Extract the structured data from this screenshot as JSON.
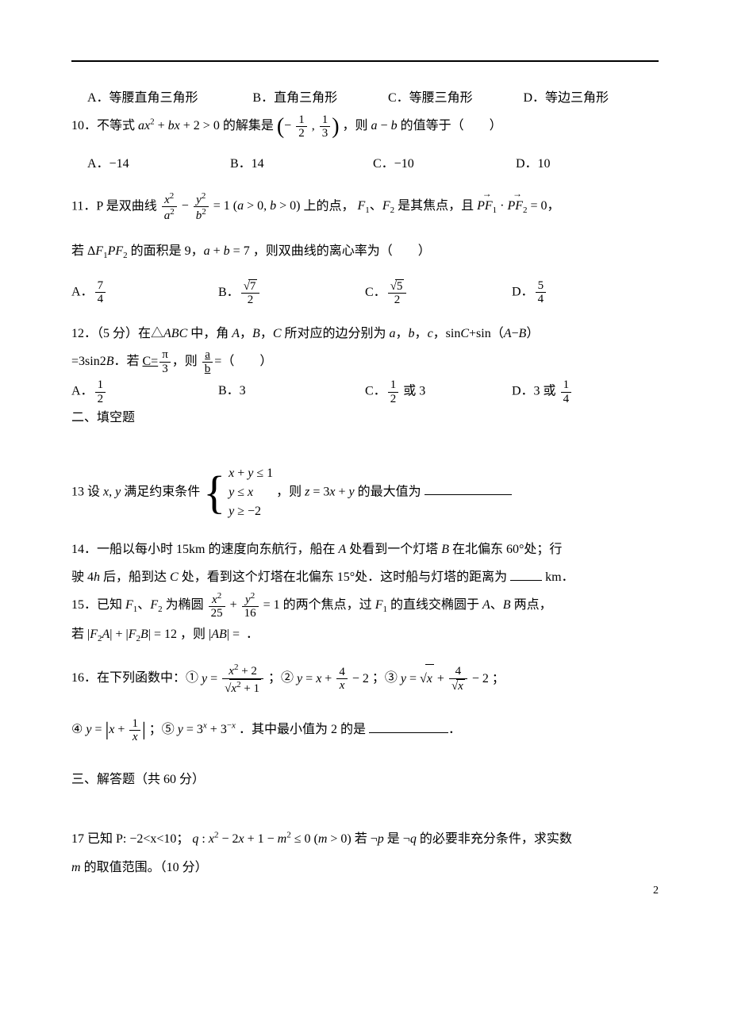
{
  "q9": {
    "choices": {
      "a": "A．等腰直角三角形",
      "b": "B．直角三角形",
      "c": "C．等腰三角形",
      "d": "D．等边三角形"
    }
  },
  "q10": {
    "stem_lead": "10．不等式 ",
    "expr_html": "<span class='ital'>ax</span><sup>2</sup> + <span class='ital'>bx</span> + 2 &gt; 0",
    "mid": " 的解集是 ",
    "interval_html": "<span class='bigparen'>(</span>− <span class='frac'><span class='num'>1</span><span class='den'>2</span></span> , <span class='frac'><span class='num'>1</span><span class='den'>3</span></span><span class='bigparen'>)</span>",
    "tail": "，则 ",
    "ab": "<span class='ital'>a</span> − <span class='ital'>b</span>",
    "tail2": " 的值等于（　　）",
    "choices": {
      "a": "A．−14",
      "b": "B．14",
      "c": "C．−10",
      "d": "D．10"
    }
  },
  "q11": {
    "lead": "11．P 是双曲线 ",
    "eq_html": "<span class='frac'><span class='num'><span class='ital'>x</span><sup>2</sup></span><span class='den'><span class='ital'>a</span><sup>2</sup></span></span> − <span class='frac'><span class='num'><span class='ital'>y</span><sup>2</sup></span><span class='den'><span class='ital'>b</span><sup>2</sup></span></span> = 1 (<span class='ital'>a</span> &gt; 0, <span class='ital'>b</span> &gt; 0)",
    "mid": " 上的点，",
    "foci": "<span class='ital'>F</span><sub>1</sub>、<span class='ital'>F</span><sub>2</sub> 是其焦点，且 ",
    "dot": "<span class='vec'><span class='ital'>PF</span><sub>1</sub></span> · <span class='vec'><span class='ital'>PF</span><sub>2</sub></span> = 0，",
    "line2_lead": "若 Δ<span class='ital'>F</span><sub>1</sub><span class='ital'>PF</span><sub>2</sub> 的面积是 9，<span class='ital'>a</span> + <span class='ital'>b</span> = 7 ，则双曲线的离心率为（　　）",
    "choices": {
      "a": "A．<span class='frac'><span class='num'>7</span><span class='den'>4</span></span>",
      "b": "B．<span class='frac'><span class='num'>√<span class='sqrt'>7</span></span><span class='den'>2</span></span>",
      "c": "C．<span class='frac'><span class='num'>√<span class='sqrt'>5</span></span><span class='den'>2</span></span>",
      "d": "D．<span class='frac'><span class='num'>5</span><span class='den'>4</span></span>"
    }
  },
  "q12": {
    "lead": "12．（5 分）在△<span class='ital'>ABC</span> 中，角 <span class='ital'>A</span>，<span class='ital'>B</span>，<span class='ital'>C</span> 所对应的边分别为 <span class='ital'>a</span>，<span class='ital'>b</span>，<span class='ital'>c</span>，sin<span class='ital'>C</span>+sin（<span class='ital'>A</span>−<span class='ital'>B</span>）",
    "line2": "=3sin2<span class='ital'>B</span>．若 <span style='text-decoration:underline'>C=<span class='frac'><span class='num'>π</span><span class='den'>3</span></span></span>，则 <span class='frac' style='text-decoration:underline'><span class='num'>a</span><span class='den'>b</span></span>=（　　）",
    "choices": {
      "a": "A．<span class='frac'><span class='num'>1</span><span class='den'>2</span></span>",
      "b": "B．3",
      "c": "C．<span class='frac'><span class='num'>1</span><span class='den'>2</span></span> 或 3",
      "d": "D．3 或 <span class='frac'><span class='num'>1</span><span class='den'>4</span></span>"
    }
  },
  "section2": "二、填空题",
  "q13": {
    "lead": "13 设 <span class='ital'>x</span>, <span class='ital'>y</span> 满足约束条件 ",
    "sys_rows": [
      "<span class='ital'>x</span> + <span class='ital'>y</span> ≤ 1",
      "<span class='ital'>y</span> ≤ <span class='ital'>x</span>",
      "<span class='ital'>y</span> ≥ −2"
    ],
    "tail": "，则 <span class='ital'>z</span> = 3<span class='ital'>x</span> + <span class='ital'>y</span> 的最大值为 "
  },
  "q14": {
    "line1": "14．一船以每小时 15km 的速度向东航行，船在 <span class='ital'>A</span> 处看到一个灯塔 <span class='ital'>B</span> 在北偏东 60°处；行",
    "line2": "驶 4<span class='ital'>h</span> 后，船到达 <span class='ital'>C</span> 处，看到这个灯塔在北偏东 15°处．这时船与灯塔的距离为 ",
    "unit": " km．"
  },
  "q15": {
    "lead": "15．已知 <span class='ital'>F</span><sub>1</sub>、<span class='ital'>F</span><sub>2</sub> 为椭圆 ",
    "eq": "<span class='frac'><span class='num'><span class='ital'>x</span><sup>2</sup></span><span class='den'>25</span></span> + <span class='frac'><span class='num'><span class='ital'>y</span><sup>2</sup></span><span class='den'>16</span></span> = 1",
    "mid": " 的两个焦点，过 <span class='ital'>F</span><sub>1</sub> 的直线交椭圆于 <span class='ital'>A</span>、<span class='ital'>B</span> 两点，",
    "line2": "若 |<span class='ital'>F</span><sub>2</sub><span class='ital'>A</span>| + |<span class='ital'>F</span><sub>2</sub><span class='ital'>B</span>| = 12 ，则 |<span class='ital'>AB</span>| ="
  },
  "q16": {
    "lead": "16．在下列函数中：① ",
    "f1": "<span class='ital'>y</span> = <span class='frac'><span class='num'><span class='ital'>x</span><sup>2</sup> + 2</span><span class='den'>√<span class='sqrt'><span class='ital'>x</span><sup>2</sup> + 1</span></span></span>",
    "sep1": " ；② ",
    "f2": "<span class='ital'>y</span> = <span class='ital'>x</span> + <span class='frac'><span class='num'>4</span><span class='den'><span class='ital'>x</span></span></span> − 2",
    "sep2": " ；③ ",
    "f3": "<span class='ital'>y</span> = √<span class='sqrt'><span class='ital'>x</span></span> + <span class='frac'><span class='num'>4</span><span class='den'>√<span class='sqrt'><span class='ital'>x</span></span></span></span> − 2 ；",
    "line2_lead": "④ ",
    "f4": "<span class='ital'>y</span> = <span style='font-size:24px;vertical-align:middle'>|</span><span class='ital'>x</span> + <span class='frac'><span class='num'>1</span><span class='den'><span class='ital'>x</span></span></span><span style='font-size:24px;vertical-align:middle'>|</span>",
    "sep3": " ；⑤ ",
    "f5": "<span class='ital'>y</span> = 3<sup><span class='ital'>x</span></sup> + 3<sup>−<span class='ital'>x</span></sup>",
    "tail": "．其中最小值为 2 的是 "
  },
  "section3": "三、解答题（共 60 分）",
  "q17": {
    "lead": "17 已知 P: −2&lt;x&lt;10；",
    "q": "<span class='ital'>q</span> : <span class='ital'>x</span><sup>2</sup> − 2<span class='ital'>x</span> + 1 − <span class='ital'>m</span><sup>2</sup> ≤ 0 (<span class='ital'>m</span> &gt; 0)",
    "mid": " 若 ¬<span class='ital'>p</span> 是 ¬<span class='ital'>q</span> 的必要非充分条件，求实数",
    "line2": "<span class='ital'>m</span> 的取值范围。（10 分）"
  },
  "pagenum": "2"
}
